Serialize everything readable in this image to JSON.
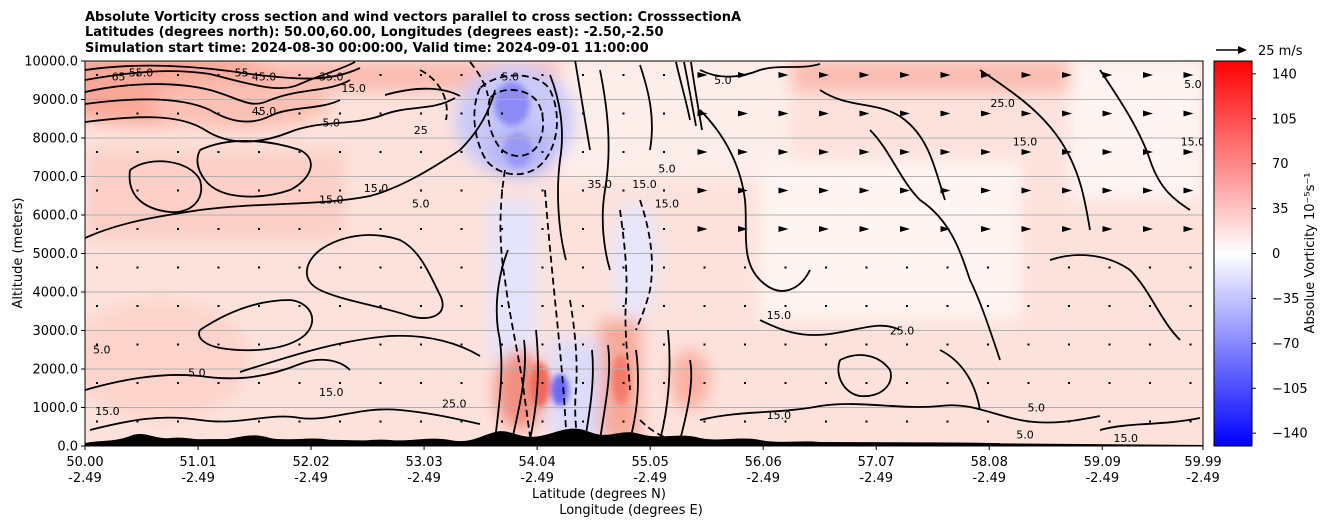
{
  "chart_data": {
    "type": "heatmap",
    "title_lines": [
      "Absolute Vorticity cross section and wind vectors parallel to cross section: CrosssectionA",
      "Latitudes (degrees north): 50.00,60.00, Longitudes (degrees east): -2.50,-2.50",
      "Simulation start time: 2024-08-30 00:00:00, Valid time: 2024-09-01 11:00:00"
    ],
    "xlabel_lines": [
      "Latitude (degrees N)",
      "Longitude (degrees E)"
    ],
    "ylabel": "Altitude (meters)",
    "x_ticks": [
      {
        "lat": "50.00",
        "lon": "-2.49"
      },
      {
        "lat": "51.01",
        "lon": "-2.49"
      },
      {
        "lat": "52.02",
        "lon": "-2.49"
      },
      {
        "lat": "53.03",
        "lon": "-2.49"
      },
      {
        "lat": "54.04",
        "lon": "-2.49"
      },
      {
        "lat": "55.05",
        "lon": "-2.49"
      },
      {
        "lat": "56.06",
        "lon": "-2.49"
      },
      {
        "lat": "57.07",
        "lon": "-2.49"
      },
      {
        "lat": "58.08",
        "lon": "-2.49"
      },
      {
        "lat": "59.09",
        "lon": "-2.49"
      },
      {
        "lat": "59.99",
        "lon": "-2.49"
      }
    ],
    "xlim": [
      50.0,
      59.99
    ],
    "y_ticks": [
      "0.0",
      "1000.0",
      "2000.0",
      "3000.0",
      "4000.0",
      "5000.0",
      "6000.0",
      "7000.0",
      "8000.0",
      "9000.0",
      "10000.0"
    ],
    "ylim": [
      0,
      10000
    ],
    "grid": "horizontal",
    "colorbar": {
      "label": "Absolue Vorticity 10⁻⁵s⁻¹",
      "ticks": [
        "140",
        "105",
        "70",
        "35",
        "0",
        "−35",
        "−70",
        "−105",
        "−140"
      ],
      "range": [
        -150,
        150
      ],
      "colormap": "bwr",
      "colors": {
        "min": "#0000ff",
        "mid": "#ffffff",
        "max": "#ff0000"
      }
    },
    "quiver_key": {
      "label": "25 m/s"
    },
    "contour_labels": [
      {
        "text": "65",
        "lat": 50.3,
        "alt": 9500
      },
      {
        "text": "55.0",
        "lat": 50.5,
        "alt": 9600
      },
      {
        "text": "45.0",
        "lat": 51.6,
        "alt": 9500
      },
      {
        "text": "55",
        "lat": 51.4,
        "alt": 9600
      },
      {
        "text": "35.0",
        "lat": 52.2,
        "alt": 9500
      },
      {
        "text": "45.0",
        "lat": 51.6,
        "alt": 8600
      },
      {
        "text": "15.0",
        "lat": 52.4,
        "alt": 9200
      },
      {
        "text": "5.0",
        "lat": 52.2,
        "alt": 8300
      },
      {
        "text": "25",
        "lat": 53.0,
        "alt": 8100
      },
      {
        "text": "5.0",
        "lat": 53.8,
        "alt": 9500
      },
      {
        "text": "15.0",
        "lat": 52.6,
        "alt": 6600
      },
      {
        "text": "15.0",
        "lat": 52.2,
        "alt": 6300
      },
      {
        "text": "5.0",
        "lat": 53.0,
        "alt": 6200
      },
      {
        "text": "5.0",
        "lat": 55.7,
        "alt": 9400
      },
      {
        "text": "25.0",
        "lat": 58.2,
        "alt": 8800
      },
      {
        "text": "15.0",
        "lat": 58.4,
        "alt": 7800
      },
      {
        "text": "5.0",
        "lat": 55.2,
        "alt": 7100
      },
      {
        "text": "15.0",
        "lat": 55.0,
        "alt": 6700
      },
      {
        "text": "35.0",
        "lat": 54.6,
        "alt": 6700
      },
      {
        "text": "15.0",
        "lat": 55.2,
        "alt": 6200
      },
      {
        "text": "15.0",
        "lat": 56.2,
        "alt": 3300
      },
      {
        "text": "25.0",
        "lat": 57.3,
        "alt": 2900
      },
      {
        "text": "15.0",
        "lat": 52.2,
        "alt": 1300
      },
      {
        "text": "25.0",
        "lat": 53.3,
        "alt": 1000
      },
      {
        "text": "5.0",
        "lat": 58.5,
        "alt": 900
      },
      {
        "text": "15.0",
        "lat": 56.2,
        "alt": 700
      },
      {
        "text": "15.0",
        "lat": 50.2,
        "alt": 800
      },
      {
        "text": "5.0",
        "lat": 50.15,
        "alt": 2400
      },
      {
        "text": "5.0",
        "lat": 51.0,
        "alt": 1800
      },
      {
        "text": "15.0",
        "lat": 59.3,
        "alt": 100
      },
      {
        "text": "5.0",
        "lat": 58.4,
        "alt": 200
      },
      {
        "text": "15.0",
        "lat": 59.9,
        "alt": 7800
      },
      {
        "text": "5.0",
        "lat": 59.9,
        "alt": 9300
      }
    ]
  }
}
